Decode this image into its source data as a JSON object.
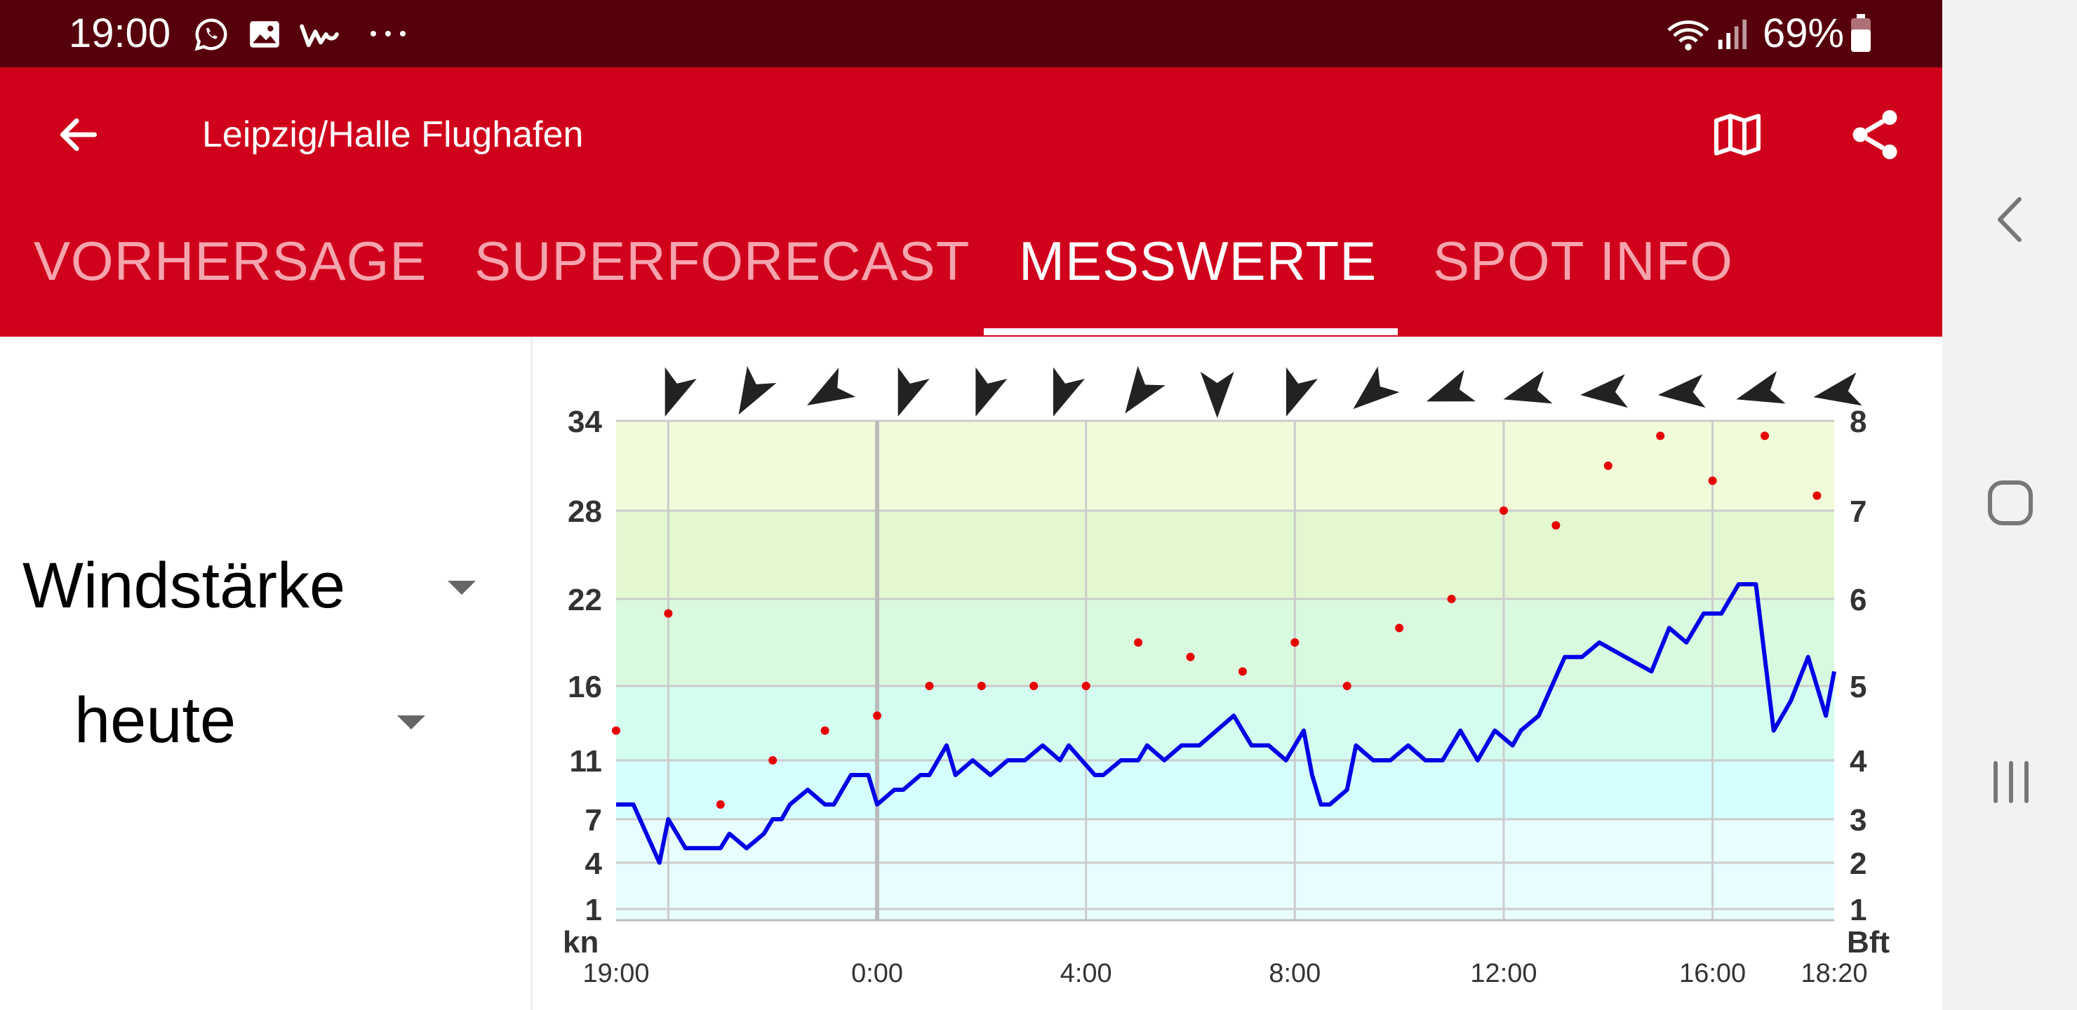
{
  "status_bar": {
    "time": "19:00",
    "battery": "69%",
    "icons": [
      "whatsapp-icon",
      "gallery-icon",
      "app-w-icon",
      "more-notifications-icon",
      "wifi-icon",
      "signal-icon",
      "battery-icon"
    ]
  },
  "app_bar": {
    "title": "Leipzig/Halle Flughafen",
    "back_icon": "arrow-back-icon",
    "actions": [
      "map-icon",
      "share-icon"
    ]
  },
  "tabs": [
    {
      "label": "VORHERSAGE",
      "active": false
    },
    {
      "label": "SUPERFORECAST",
      "active": false
    },
    {
      "label": "MESSWERTE",
      "active": true
    },
    {
      "label": "SPOT INFO",
      "active": false
    }
  ],
  "left_panel": {
    "measure": "Windstärke",
    "period": "heute"
  },
  "nav_bar": [
    "back-icon",
    "home-icon",
    "recents-icon"
  ],
  "colors": {
    "status_bar": "#56000c",
    "app_bar": "#d0021b",
    "series_wind": "#0000e6",
    "series_gust": "#e60000",
    "arrow": "#222222"
  },
  "chart_data": {
    "type": "line",
    "y_left_label": "kn",
    "y_right_label": "Bft",
    "y_left_ticks": [
      1,
      4,
      7,
      11,
      16,
      22,
      28,
      34
    ],
    "y_right_ticks": [
      "1",
      "2",
      "3",
      "4",
      "5",
      "6",
      "7",
      "8"
    ],
    "x_ticks": [
      "19:00",
      "0:00",
      "4:00",
      "8:00",
      "12:00",
      "16:00",
      "18:20"
    ],
    "x_range_hours": [
      0,
      23.33
    ],
    "series": [
      {
        "kind": "line",
        "x": [
          0,
          0.33,
          0.83,
          1.0,
          1.33,
          1.67,
          2.0,
          2.17,
          2.5,
          2.83,
          3.0,
          3.17,
          3.33,
          3.67,
          4.0,
          4.17,
          4.5,
          4.83,
          5.0,
          5.33,
          5.5,
          5.83,
          6.0,
          6.33,
          6.5,
          6.83,
          7.17,
          7.5,
          7.83,
          8.17,
          8.5,
          8.67,
          9.17,
          9.33,
          9.67,
          10.0,
          10.17,
          10.5,
          10.83,
          11.17,
          11.5,
          11.83,
          12.17,
          12.5,
          12.83,
          13.17,
          13.33,
          13.5,
          13.67,
          14.0,
          14.17,
          14.5,
          14.83,
          15.17,
          15.5,
          15.83,
          16.17,
          16.5,
          16.83,
          17.17,
          17.33,
          17.67,
          18.17,
          18.5,
          18.83,
          19.33,
          19.83,
          20.17,
          20.5,
          20.83,
          21.17,
          21.5,
          21.83,
          22.17,
          22.5,
          22.83,
          23.17,
          23.33
        ],
        "y": [
          8,
          8,
          4,
          7,
          5,
          5,
          5,
          6,
          5,
          6,
          7,
          7,
          8,
          9,
          8,
          8,
          10,
          10,
          8,
          9,
          9,
          10,
          10,
          12,
          10,
          11,
          10,
          11,
          11,
          12,
          11,
          12,
          10,
          10,
          11,
          11,
          12,
          11,
          12,
          12,
          13,
          14,
          12,
          12,
          11,
          13,
          10,
          8,
          8,
          9,
          12,
          11,
          11,
          12,
          11,
          11,
          13,
          11,
          13,
          12,
          13,
          14,
          18,
          18,
          19,
          18,
          17,
          20,
          19,
          21,
          21,
          23,
          23,
          13,
          15,
          18,
          14,
          17
        ]
      },
      {
        "kind": "points",
        "x": [
          0,
          1,
          2,
          3,
          4,
          5,
          6,
          7,
          8,
          9,
          10,
          11,
          12,
          13,
          14,
          15,
          16,
          17,
          18,
          19,
          20,
          21,
          22,
          23
        ],
        "y": [
          13,
          21,
          8,
          11,
          13,
          14,
          16,
          16,
          16,
          16,
          19,
          18,
          17,
          19,
          16,
          20,
          22,
          28,
          27,
          31,
          33,
          30,
          33,
          29
        ]
      }
    ],
    "direction_arrows_deg": [
      200,
      210,
      240,
      200,
      200,
      200,
      215,
      180,
      200,
      230,
      250,
      255,
      265,
      265,
      255,
      260
    ],
    "grid": true,
    "background_bands": [
      "#f2fbd9",
      "#e3f8d1",
      "#dafae0",
      "#d4fdf1",
      "#d5fefe",
      "#e8fdfe"
    ]
  }
}
